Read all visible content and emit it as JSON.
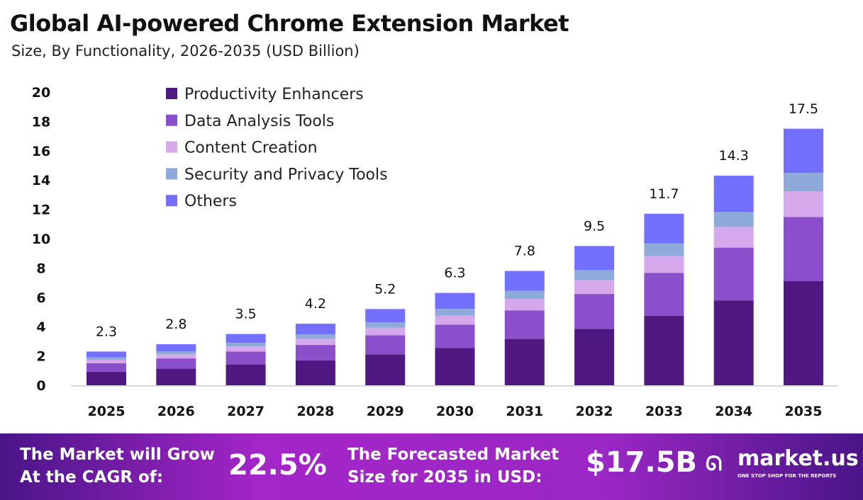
{
  "chart_data": {
    "type": "bar",
    "stacked": true,
    "title": "Global AI-powered Chrome Extension Market",
    "subtitle": "Size, By Functionality, 2026-2035 (USD Billion)",
    "categories": [
      "2025",
      "2026",
      "2027",
      "2028",
      "2029",
      "2030",
      "2031",
      "2032",
      "2033",
      "2034",
      "2035"
    ],
    "totals": [
      "2.3",
      "2.8",
      "3.5",
      "4.2",
      "5.2",
      "6.3",
      "7.8",
      "9.5",
      "11.7",
      "14.3",
      "17.5"
    ],
    "series": [
      {
        "name": "Productivity Enhancers",
        "color": "#4f1780",
        "values": [
          0.93,
          1.13,
          1.42,
          1.7,
          2.11,
          2.55,
          3.16,
          3.85,
          4.74,
          5.79,
          7.1
        ]
      },
      {
        "name": "Data Analysis Tools",
        "color": "#8b4fcb",
        "values": [
          0.58,
          0.7,
          0.88,
          1.05,
          1.3,
          1.58,
          1.95,
          2.38,
          2.93,
          3.6,
          4.38
        ]
      },
      {
        "name": "Content Creation",
        "color": "#d4a8ea",
        "values": [
          0.23,
          0.28,
          0.35,
          0.42,
          0.52,
          0.63,
          0.78,
          0.95,
          1.17,
          1.41,
          1.75
        ]
      },
      {
        "name": "Security and Privacy Tools",
        "color": "#8eaadb",
        "values": [
          0.17,
          0.2,
          0.25,
          0.3,
          0.37,
          0.45,
          0.56,
          0.68,
          0.84,
          1.02,
          1.26
        ]
      },
      {
        "name": "Others",
        "color": "#7470ff",
        "values": [
          0.39,
          0.49,
          0.6,
          0.73,
          0.9,
          1.09,
          1.35,
          1.64,
          2.02,
          2.48,
          3.01
        ]
      }
    ],
    "ylim": [
      0,
      20
    ],
    "yticks": [
      "0",
      "2",
      "4",
      "6",
      "8",
      "10",
      "12",
      "14",
      "16",
      "18",
      "20"
    ],
    "grid": false,
    "legend": "top-left"
  },
  "footer": {
    "cagr_label_1": "The Market will Grow",
    "cagr_label_2": "At the CAGR of:",
    "cagr_value": "22.5%",
    "forecast_label_1": "The Forecasted Market",
    "forecast_label_2": "Size for 2035 in USD:",
    "forecast_value": "$17.5B",
    "brand": "market.us",
    "brand_tagline": "ONE STOP SHOP FOR THE REPORTS"
  }
}
